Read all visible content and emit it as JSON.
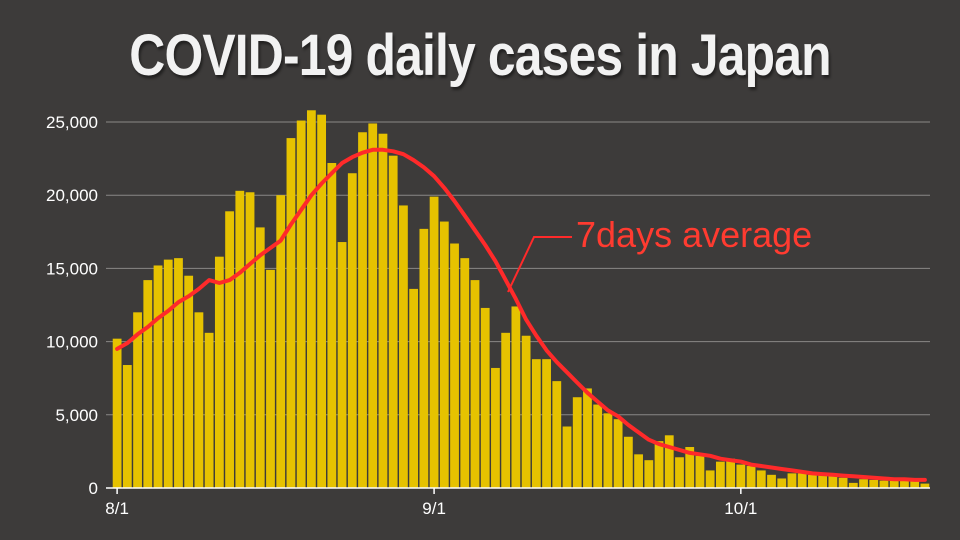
{
  "chart_data": {
    "type": "bar",
    "title": "COVID-19 daily cases in Japan",
    "xlabel": "",
    "ylabel": "",
    "ylim": [
      0,
      25000
    ],
    "yticks": [
      0,
      5000,
      10000,
      15000,
      20000,
      25000
    ],
    "ytick_labels": [
      "0",
      "5,000",
      "10,000",
      "15,000",
      "20,000",
      "25,000"
    ],
    "xtick_labels": [
      {
        "label": "8/1",
        "index": 0
      },
      {
        "label": "9/1",
        "index": 31
      },
      {
        "label": "10/1",
        "index": 61
      }
    ],
    "grid": true,
    "annotation": "7days average",
    "bar_color": "#e6c200",
    "line_color": "#ff2a2a",
    "background_color": "#3d3b3a",
    "categories_start": "8/1",
    "values": [
      10200,
      8400,
      12000,
      14200,
      15200,
      15600,
      15700,
      14500,
      12000,
      10600,
      15800,
      18900,
      20300,
      20200,
      17800,
      14900,
      20000,
      23900,
      25100,
      25800,
      25500,
      22200,
      16800,
      21500,
      24300,
      24900,
      24200,
      22700,
      19300,
      13600,
      17700,
      19900,
      18200,
      16700,
      15700,
      14200,
      12300,
      8200,
      10600,
      12400,
      10400,
      8800,
      8800,
      7300,
      4200,
      6200,
      6800,
      5700,
      5100,
      4700,
      3500,
      2300,
      1900,
      3200,
      3600,
      2100,
      2800,
      2200,
      1200,
      1800,
      2000,
      1600,
      1500,
      1200,
      900,
      650,
      1000,
      1000,
      900,
      850,
      800,
      700,
      350,
      600,
      550,
      500,
      500,
      500,
      450,
      300
    ],
    "series": [
      {
        "name": "7days average",
        "type": "line",
        "values": [
          9500,
          9900,
          10500,
          11000,
          11600,
          12100,
          12700,
          13100,
          13600,
          14200,
          14000,
          14200,
          14700,
          15300,
          15900,
          16400,
          16900,
          18000,
          19000,
          20000,
          20800,
          21500,
          22200,
          22600,
          22900,
          23100,
          23100,
          23000,
          22800,
          22400,
          21900,
          21300,
          20500,
          19600,
          18600,
          17600,
          16600,
          15500,
          14200,
          12900,
          11500,
          10400,
          9400,
          8600,
          7900,
          7200,
          6500,
          5900,
          5300,
          4900,
          4300,
          3800,
          3300,
          3000,
          2800,
          2600,
          2400,
          2300,
          2200,
          2000,
          1900,
          1800,
          1600,
          1500,
          1400,
          1300,
          1200,
          1100,
          1000,
          950,
          900,
          850,
          800,
          750,
          700,
          650,
          600,
          600,
          550,
          550
        ]
      }
    ]
  }
}
